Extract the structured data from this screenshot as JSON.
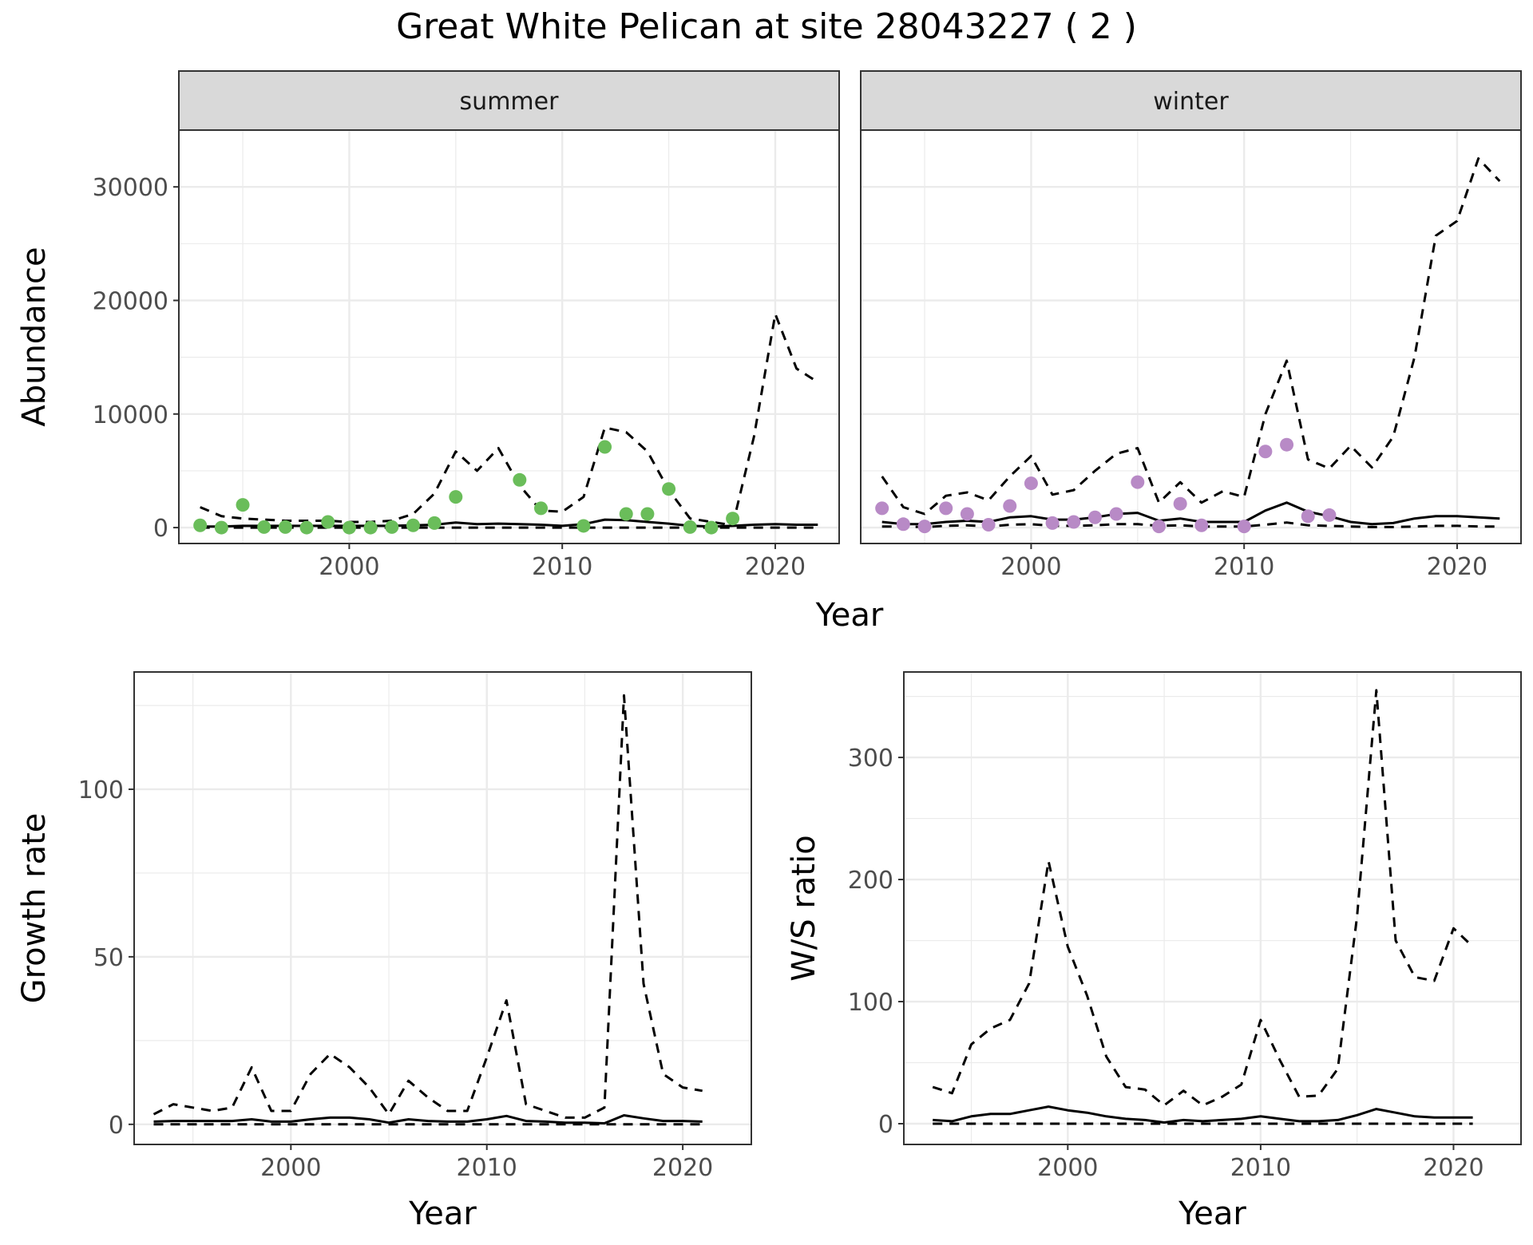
{
  "title": "Great White Pelican at site 28043227 ( 2 )",
  "colors": {
    "summer_points": "#6abd5a",
    "winter_points": "#b88ac6",
    "lines": "#000000",
    "strip_bg": "#d9d9d9",
    "grid": "#ebebeb"
  },
  "chart_data": [
    {
      "type": "line",
      "facets": [
        "summer",
        "winter"
      ],
      "xlabel": "Year",
      "ylabel": "Abundance",
      "xlim": [
        1992,
        2023
      ],
      "ylim": [
        -1400,
        35000
      ],
      "xticks": [
        2000,
        2010,
        2020
      ],
      "yticks": [
        0,
        10000,
        20000,
        30000
      ],
      "panels": [
        {
          "facet": "summer",
          "point_color": "#6abd5a",
          "points": {
            "x": [
              1993,
              1994,
              1995,
              1996,
              1997,
              1998,
              1999,
              2000,
              2001,
              2002,
              2003,
              2004,
              2005,
              2008,
              2009,
              2011,
              2012,
              2013,
              2014,
              2015,
              2016,
              2017,
              2018
            ],
            "y": [
              200,
              0,
              2000,
              50,
              50,
              0,
              500,
              0,
              0,
              50,
              200,
              400,
              2700,
              4200,
              1700,
              150,
              7100,
              1200,
              1200,
              3400,
              50,
              0,
              800
            ]
          },
          "series": [
            {
              "name": "mean",
              "style": "solid",
              "x": [
                1993,
                1994,
                1995,
                1996,
                1997,
                1998,
                1999,
                2000,
                2001,
                2002,
                2003,
                2004,
                2005,
                2006,
                2007,
                2008,
                2009,
                2010,
                2011,
                2012,
                2013,
                2014,
                2015,
                2016,
                2017,
                2018,
                2019,
                2020,
                2021,
                2022
              ],
              "y": [
                100,
                100,
                150,
                150,
                150,
                150,
                150,
                150,
                150,
                150,
                200,
                250,
                450,
                300,
                350,
                300,
                250,
                150,
                300,
                700,
                650,
                500,
                350,
                150,
                100,
                150,
                250,
                300,
                250,
                250
              ]
            },
            {
              "name": "upper",
              "style": "dashed",
              "x": [
                1993,
                1994,
                1995,
                1996,
                1997,
                1998,
                1999,
                2000,
                2001,
                2002,
                2003,
                2004,
                2005,
                2006,
                2007,
                2008,
                2009,
                2010,
                2011,
                2012,
                2013,
                2014,
                2015,
                2016,
                2017,
                2018,
                2019,
                2020,
                2021,
                2022
              ],
              "y": [
                1800,
                1000,
                800,
                700,
                600,
                600,
                600,
                500,
                500,
                600,
                1200,
                3000,
                6700,
                5000,
                7000,
                3700,
                1500,
                1400,
                2700,
                8800,
                8400,
                6700,
                3300,
                800,
                500,
                200,
                8000,
                18800,
                14000,
                12800
              ]
            },
            {
              "name": "lower",
              "style": "dashed",
              "x": [
                1993,
                1994,
                1995,
                1996,
                1997,
                1998,
                1999,
                2000,
                2001,
                2002,
                2003,
                2004,
                2005,
                2006,
                2007,
                2008,
                2009,
                2010,
                2011,
                2012,
                2013,
                2014,
                2015,
                2016,
                2017,
                2018,
                2019,
                2020,
                2021,
                2022
              ],
              "y": [
                0,
                0,
                0,
                0,
                0,
                0,
                0,
                0,
                0,
                0,
                0,
                0,
                0,
                0,
                0,
                0,
                0,
                0,
                0,
                0,
                0,
                0,
                0,
                0,
                0,
                0,
                0,
                0,
                0,
                0
              ]
            }
          ]
        },
        {
          "facet": "winter",
          "point_color": "#b88ac6",
          "points": {
            "x": [
              1993,
              1994,
              1995,
              1996,
              1997,
              1998,
              1999,
              2000,
              2001,
              2002,
              2003,
              2004,
              2005,
              2006,
              2007,
              2008,
              2010,
              2011,
              2012,
              2013,
              2014
            ],
            "y": [
              1700,
              300,
              100,
              1700,
              1200,
              250,
              1900,
              3900,
              400,
              500,
              900,
              1200,
              4000,
              100,
              2100,
              200,
              100,
              6700,
              7300,
              1000,
              1100
            ]
          },
          "series": [
            {
              "name": "mean",
              "style": "solid",
              "x": [
                1993,
                1994,
                1995,
                1996,
                1997,
                1998,
                1999,
                2000,
                2001,
                2002,
                2003,
                2004,
                2005,
                2006,
                2007,
                2008,
                2009,
                2010,
                2011,
                2012,
                2013,
                2014,
                2015,
                2016,
                2017,
                2018,
                2019,
                2020,
                2021,
                2022
              ],
              "y": [
                500,
                300,
                300,
                500,
                600,
                500,
                900,
                1000,
                700,
                700,
                900,
                1200,
                1300,
                600,
                800,
                500,
                500,
                500,
                1500,
                2200,
                1400,
                1000,
                500,
                300,
                400,
                800,
                1000,
                1000,
                900,
                800
              ]
            },
            {
              "name": "upper",
              "style": "dashed",
              "x": [
                1993,
                1994,
                1995,
                1996,
                1997,
                1998,
                1999,
                2000,
                2001,
                2002,
                2003,
                2004,
                2005,
                2006,
                2007,
                2008,
                2009,
                2010,
                2011,
                2012,
                2013,
                2014,
                2015,
                2016,
                2017,
                2018,
                2019,
                2020,
                2021,
                2022
              ],
              "y": [
                4500,
                1800,
                1200,
                2800,
                3100,
                2400,
                4500,
                6300,
                2900,
                3300,
                5000,
                6500,
                7000,
                2200,
                4000,
                2200,
                3200,
                2700,
                10000,
                14700,
                6000,
                5200,
                7200,
                5300,
                8000,
                15000,
                25700,
                27000,
                32500,
                30500
              ]
            },
            {
              "name": "lower",
              "style": "dashed",
              "x": [
                1993,
                1994,
                1995,
                1996,
                1997,
                1998,
                1999,
                2000,
                2001,
                2002,
                2003,
                2004,
                2005,
                2006,
                2007,
                2008,
                2009,
                2010,
                2011,
                2012,
                2013,
                2014,
                2015,
                2016,
                2017,
                2018,
                2019,
                2020,
                2021,
                2022
              ],
              "y": [
                100,
                100,
                50,
                150,
                200,
                100,
                250,
                300,
                150,
                150,
                200,
                300,
                300,
                150,
                200,
                100,
                100,
                100,
                250,
                450,
                200,
                150,
                100,
                50,
                50,
                100,
                150,
                150,
                100,
                100
              ]
            }
          ]
        }
      ]
    },
    {
      "type": "line",
      "xlabel": "Year",
      "ylabel": "Growth rate",
      "xlim": [
        1992,
        2023.5
      ],
      "ylim": [
        -6,
        135
      ],
      "xticks": [
        2000,
        2010,
        2020
      ],
      "yticks": [
        0,
        50,
        100
      ],
      "series": [
        {
          "name": "mean",
          "style": "solid",
          "x": [
            1993,
            1994,
            1995,
            1996,
            1997,
            1998,
            1999,
            2000,
            2001,
            2002,
            2003,
            2004,
            2005,
            2006,
            2007,
            2008,
            2009,
            2010,
            2011,
            2012,
            2013,
            2014,
            2015,
            2016,
            2017,
            2018,
            2019,
            2020,
            2021
          ],
          "y": [
            0.8,
            1,
            1,
            1,
            1,
            1.5,
            0.8,
            0.8,
            1.5,
            2,
            2,
            1.5,
            0.5,
            1.5,
            1,
            0.8,
            0.8,
            1.5,
            2.5,
            1,
            0.8,
            0.5,
            0.5,
            0.3,
            2.7,
            1.8,
            1,
            1,
            0.8
          ]
        },
        {
          "name": "upper",
          "style": "dashed",
          "x": [
            1993,
            1994,
            1995,
            1996,
            1997,
            1998,
            1999,
            2000,
            2001,
            2002,
            2003,
            2004,
            2005,
            2006,
            2007,
            2008,
            2009,
            2010,
            2011,
            2012,
            2013,
            2014,
            2015,
            2016,
            2017,
            2018,
            2019,
            2020,
            2021
          ],
          "y": [
            3,
            6,
            5,
            4,
            5,
            17,
            4,
            4,
            15,
            21,
            17,
            11,
            3,
            13,
            8,
            4,
            4,
            20,
            37,
            6,
            4,
            2,
            2,
            5,
            128,
            42,
            15,
            11,
            10
          ]
        },
        {
          "name": "lower",
          "style": "dashed",
          "x": [
            1993,
            1994,
            1995,
            1996,
            1997,
            1998,
            1999,
            2000,
            2001,
            2002,
            2003,
            2004,
            2005,
            2006,
            2007,
            2008,
            2009,
            2010,
            2011,
            2012,
            2013,
            2014,
            2015,
            2016,
            2017,
            2018,
            2019,
            2020,
            2021
          ],
          "y": [
            0,
            0,
            0,
            0,
            0,
            0,
            0,
            0,
            0,
            0,
            0,
            0,
            0,
            0,
            0,
            0,
            0,
            0,
            0,
            0,
            0,
            0,
            0,
            0,
            0,
            0,
            0,
            0,
            0
          ]
        }
      ]
    },
    {
      "type": "line",
      "xlabel": "Year",
      "ylabel": "W/S ratio",
      "xlim": [
        1991.5,
        2023.5
      ],
      "ylim": [
        -17,
        370
      ],
      "xticks": [
        2000,
        2010,
        2020
      ],
      "yticks": [
        0,
        100,
        200,
        300
      ],
      "series": [
        {
          "name": "mean",
          "style": "solid",
          "x": [
            1993,
            1994,
            1995,
            1996,
            1997,
            1998,
            1999,
            2000,
            2001,
            2002,
            2003,
            2004,
            2005,
            2006,
            2007,
            2008,
            2009,
            2010,
            2011,
            2012,
            2013,
            2014,
            2015,
            2016,
            2017,
            2018,
            2019,
            2020,
            2021
          ],
          "y": [
            3,
            2,
            6,
            8,
            8,
            11,
            14,
            11,
            9,
            6,
            4,
            3,
            1,
            3,
            2,
            3,
            4,
            6,
            4,
            2,
            2,
            3,
            7,
            12,
            9,
            6,
            5,
            5,
            5
          ]
        },
        {
          "name": "upper",
          "style": "dashed",
          "x": [
            1993,
            1994,
            1995,
            1996,
            1997,
            1998,
            1999,
            2000,
            2001,
            2002,
            2003,
            2004,
            2005,
            2006,
            2007,
            2008,
            2009,
            2010,
            2011,
            2012,
            2013,
            2014,
            2015,
            2016,
            2017,
            2018,
            2019,
            2020,
            2021
          ],
          "y": [
            30,
            25,
            65,
            78,
            85,
            115,
            215,
            145,
            105,
            55,
            30,
            28,
            15,
            27,
            15,
            22,
            32,
            85,
            52,
            22,
            23,
            45,
            170,
            355,
            150,
            120,
            117,
            160,
            145
          ]
        },
        {
          "name": "lower",
          "style": "dashed",
          "x": [
            1993,
            1994,
            1995,
            1996,
            1997,
            1998,
            1999,
            2000,
            2001,
            2002,
            2003,
            2004,
            2005,
            2006,
            2007,
            2008,
            2009,
            2010,
            2011,
            2012,
            2013,
            2014,
            2015,
            2016,
            2017,
            2018,
            2019,
            2020,
            2021
          ],
          "y": [
            0,
            0,
            0,
            0,
            0,
            0,
            0,
            0,
            0,
            0,
            0,
            0,
            0,
            0,
            0,
            0,
            0,
            0,
            0,
            0,
            0,
            0,
            0,
            0,
            0,
            0,
            0,
            0,
            0
          ]
        }
      ]
    }
  ]
}
